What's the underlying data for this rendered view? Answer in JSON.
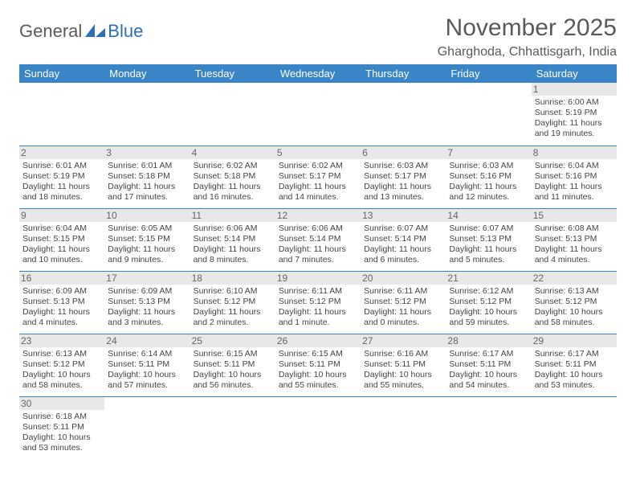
{
  "logo": {
    "word1": "General",
    "word2": "Blue"
  },
  "title": "November 2025",
  "location": "Gharghoda, Chhattisgarh, India",
  "colors": {
    "header_bg": "#3a84c8",
    "header_text": "#ffffff",
    "border": "#3a84c8",
    "daynum_bg": "#e8e8e8",
    "logo_gray": "#5a5a5a",
    "logo_blue": "#2d6fb8"
  },
  "weekdays": [
    "Sunday",
    "Monday",
    "Tuesday",
    "Wednesday",
    "Thursday",
    "Friday",
    "Saturday"
  ],
  "days": [
    {
      "n": 1,
      "sr": "6:00 AM",
      "ss": "5:19 PM",
      "dl": "11 hours and 19 minutes."
    },
    {
      "n": 2,
      "sr": "6:01 AM",
      "ss": "5:19 PM",
      "dl": "11 hours and 18 minutes."
    },
    {
      "n": 3,
      "sr": "6:01 AM",
      "ss": "5:18 PM",
      "dl": "11 hours and 17 minutes."
    },
    {
      "n": 4,
      "sr": "6:02 AM",
      "ss": "5:18 PM",
      "dl": "11 hours and 16 minutes."
    },
    {
      "n": 5,
      "sr": "6:02 AM",
      "ss": "5:17 PM",
      "dl": "11 hours and 14 minutes."
    },
    {
      "n": 6,
      "sr": "6:03 AM",
      "ss": "5:17 PM",
      "dl": "11 hours and 13 minutes."
    },
    {
      "n": 7,
      "sr": "6:03 AM",
      "ss": "5:16 PM",
      "dl": "11 hours and 12 minutes."
    },
    {
      "n": 8,
      "sr": "6:04 AM",
      "ss": "5:16 PM",
      "dl": "11 hours and 11 minutes."
    },
    {
      "n": 9,
      "sr": "6:04 AM",
      "ss": "5:15 PM",
      "dl": "11 hours and 10 minutes."
    },
    {
      "n": 10,
      "sr": "6:05 AM",
      "ss": "5:15 PM",
      "dl": "11 hours and 9 minutes."
    },
    {
      "n": 11,
      "sr": "6:06 AM",
      "ss": "5:14 PM",
      "dl": "11 hours and 8 minutes."
    },
    {
      "n": 12,
      "sr": "6:06 AM",
      "ss": "5:14 PM",
      "dl": "11 hours and 7 minutes."
    },
    {
      "n": 13,
      "sr": "6:07 AM",
      "ss": "5:14 PM",
      "dl": "11 hours and 6 minutes."
    },
    {
      "n": 14,
      "sr": "6:07 AM",
      "ss": "5:13 PM",
      "dl": "11 hours and 5 minutes."
    },
    {
      "n": 15,
      "sr": "6:08 AM",
      "ss": "5:13 PM",
      "dl": "11 hours and 4 minutes."
    },
    {
      "n": 16,
      "sr": "6:09 AM",
      "ss": "5:13 PM",
      "dl": "11 hours and 4 minutes."
    },
    {
      "n": 17,
      "sr": "6:09 AM",
      "ss": "5:13 PM",
      "dl": "11 hours and 3 minutes."
    },
    {
      "n": 18,
      "sr": "6:10 AM",
      "ss": "5:12 PM",
      "dl": "11 hours and 2 minutes."
    },
    {
      "n": 19,
      "sr": "6:11 AM",
      "ss": "5:12 PM",
      "dl": "11 hours and 1 minute."
    },
    {
      "n": 20,
      "sr": "6:11 AM",
      "ss": "5:12 PM",
      "dl": "11 hours and 0 minutes."
    },
    {
      "n": 21,
      "sr": "6:12 AM",
      "ss": "5:12 PM",
      "dl": "10 hours and 59 minutes."
    },
    {
      "n": 22,
      "sr": "6:13 AM",
      "ss": "5:12 PM",
      "dl": "10 hours and 58 minutes."
    },
    {
      "n": 23,
      "sr": "6:13 AM",
      "ss": "5:12 PM",
      "dl": "10 hours and 58 minutes."
    },
    {
      "n": 24,
      "sr": "6:14 AM",
      "ss": "5:11 PM",
      "dl": "10 hours and 57 minutes."
    },
    {
      "n": 25,
      "sr": "6:15 AM",
      "ss": "5:11 PM",
      "dl": "10 hours and 56 minutes."
    },
    {
      "n": 26,
      "sr": "6:15 AM",
      "ss": "5:11 PM",
      "dl": "10 hours and 55 minutes."
    },
    {
      "n": 27,
      "sr": "6:16 AM",
      "ss": "5:11 PM",
      "dl": "10 hours and 55 minutes."
    },
    {
      "n": 28,
      "sr": "6:17 AM",
      "ss": "5:11 PM",
      "dl": "10 hours and 54 minutes."
    },
    {
      "n": 29,
      "sr": "6:17 AM",
      "ss": "5:11 PM",
      "dl": "10 hours and 53 minutes."
    },
    {
      "n": 30,
      "sr": "6:18 AM",
      "ss": "5:11 PM",
      "dl": "10 hours and 53 minutes."
    }
  ],
  "labels": {
    "sunrise": "Sunrise:",
    "sunset": "Sunset:",
    "daylight": "Daylight:"
  },
  "first_weekday_index": 6,
  "layout": {
    "cols": 7,
    "rows": 6
  }
}
